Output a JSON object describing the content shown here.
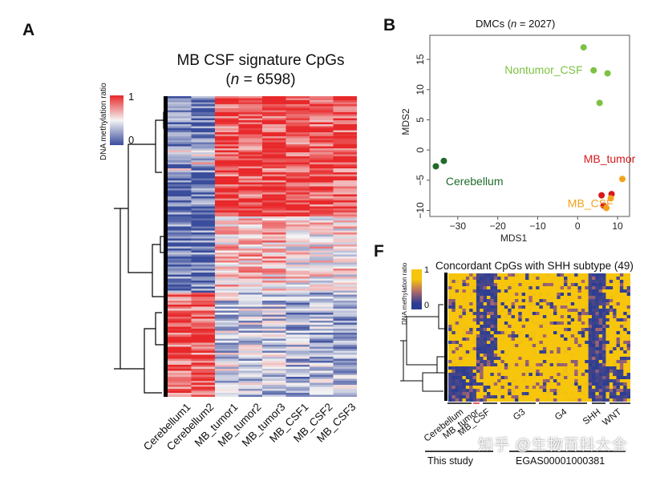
{
  "panel_a": {
    "letter": "A",
    "title_line1": "MB CSF signature CpGs",
    "title_n_label": "n",
    "title_n_value": "= 6598",
    "legend_label": "DNA methylation ratio",
    "legend_max": "1",
    "legend_min": "0",
    "columns": [
      "Cerebellum1",
      "Cerebellum2",
      "MB_tumor1",
      "MB_tumor2",
      "MB_tumor3",
      "MB_CSF1",
      "MB_CSF2",
      "MB_CSF3"
    ]
  },
  "panel_b": {
    "letter": "B",
    "chart_data": {
      "type": "scatter",
      "title": "DMCs (n = 2027)",
      "title_prefix": "DMCs (",
      "title_n": "n",
      "title_suffix": " = 2027)",
      "xlabel": "MDS1",
      "ylabel": "MDS2",
      "xlim": [
        -37,
        13
      ],
      "ylim": [
        -11,
        19
      ],
      "xticks": [
        -30,
        -20,
        -10,
        0,
        10
      ],
      "yticks": [
        -10,
        -5,
        0,
        5,
        10,
        15
      ],
      "series": [
        {
          "name": "Nontumor_CSF",
          "color": "#7dc242",
          "points": [
            [
              1.5,
              17
            ],
            [
              4,
              13.2
            ],
            [
              7.5,
              12.7
            ],
            [
              5.5,
              7.8
            ]
          ]
        },
        {
          "name": "Cerebellum",
          "color": "#1f6b2a",
          "points": [
            [
              -33.5,
              -1.8
            ],
            [
              -35.5,
              -2.7
            ]
          ]
        },
        {
          "name": "MB_tumor",
          "color": "#d7191c",
          "points": [
            [
              6,
              -7.5
            ],
            [
              8.5,
              -7.3
            ],
            [
              6.5,
              -9.2
            ]
          ]
        },
        {
          "name": "MB_CSF",
          "color": "#f4a21e",
          "points": [
            [
              11.2,
              -4.8
            ],
            [
              8.3,
              -8
            ],
            [
              7.2,
              -9.6
            ]
          ]
        }
      ]
    }
  },
  "panel_f": {
    "letter": "F",
    "title": "Concordant CpGs with SHH subtype (49)",
    "legend_label": "DNA methylation ratio",
    "legend_max": "1",
    "legend_min": "0",
    "groups": [
      "Cerebellum",
      "MB_tumor",
      "MB_CSF",
      "G3",
      "G4",
      "SHH",
      "WNT"
    ],
    "this_study": "This study",
    "egas": "EGAS00001000381"
  },
  "colors": {
    "red": "#e8282a",
    "blue": "#3a4d9c",
    "white": "#f4f4f4",
    "yellow": "#f6c50c",
    "navy": "#2c3d91"
  },
  "watermark": "知乎 @生物百科大全"
}
